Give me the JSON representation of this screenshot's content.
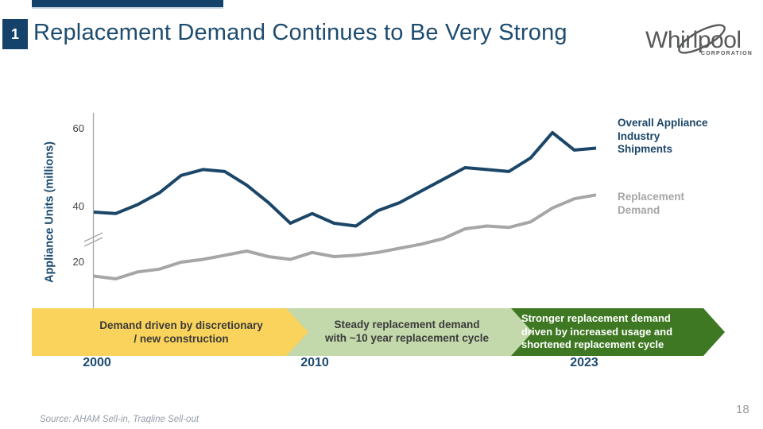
{
  "slide": {
    "badge_number": "1",
    "title": "Replacement Demand Continues to Be Very Strong",
    "source_note": "Source: AHAM Sell-in, Traqline Sell-out",
    "page_number": "18"
  },
  "logo": {
    "brand": "Whirlpool",
    "subtext": "CORPORATION"
  },
  "chart_data": {
    "type": "line",
    "title": "",
    "xlabel": "",
    "ylabel": "Appliance Units (millions)",
    "y_ticks": [
      20,
      40,
      60
    ],
    "axis_break": true,
    "axis_break_between_ticks": [
      20,
      40
    ],
    "grid": false,
    "legend_position": "right",
    "x": [
      2000,
      2001,
      2002,
      2003,
      2004,
      2005,
      2006,
      2007,
      2008,
      2009,
      2010,
      2011,
      2012,
      2013,
      2014,
      2015,
      2016,
      2017,
      2018,
      2019,
      2020,
      2021,
      2022,
      2023
    ],
    "x_tick_labels": [
      "2000",
      "2010",
      "2023"
    ],
    "series": [
      {
        "name": "Overall Appliance Industry Shipments",
        "color": "#1B4668",
        "values": [
          38,
          37.5,
          40.5,
          43.5,
          48,
          49.5,
          49,
          45.5,
          41,
          34,
          37.5,
          34,
          33,
          38.5,
          41,
          44,
          47,
          50,
          49.5,
          49,
          52.5,
          59,
          54.5,
          55
        ]
      },
      {
        "name": "Replacement Demand",
        "color": "#A6A6A6",
        "values": [
          15,
          14,
          16.5,
          17.5,
          20,
          21,
          22.5,
          24,
          22,
          21,
          23.5,
          22,
          22.5,
          23.5,
          25,
          26.5,
          28.5,
          32,
          33,
          32.5,
          34.5,
          39.5,
          42,
          43
        ]
      }
    ]
  },
  "timeline_bands": [
    {
      "text": "Demand driven by discretionary\n/ new construction",
      "color": "#FAD35C",
      "text_color": "#3A3A3A",
      "year_label": "2000"
    },
    {
      "text": "Steady replacement demand\nwith ~10 year replacement cycle",
      "color": "#C3D8AB",
      "text_color": "#3A3A3A",
      "year_label": "2010"
    },
    {
      "text": "Stronger replacement demand\ndriven by increased usage and\nshortened replacement cycle",
      "color": "#3E7823",
      "text_color": "#FFFFFF",
      "year_label": "2023"
    }
  ]
}
